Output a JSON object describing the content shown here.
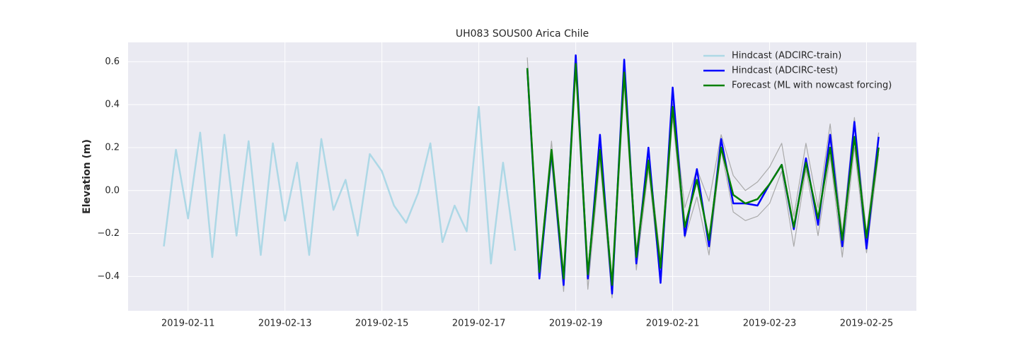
{
  "chart_data": {
    "type": "line",
    "title": "UH083 SOUS00 Arica Chile",
    "ylabel": "Elevation (m)",
    "xlim": [
      "2019-02-09T18:18",
      "2019-02-26T00:42"
    ],
    "xticks": [
      "2019-02-11",
      "2019-02-13",
      "2019-02-15",
      "2019-02-17",
      "2019-02-19",
      "2019-02-21",
      "2019-02-23",
      "2019-02-25"
    ],
    "ylim": [
      -0.56,
      0.69
    ],
    "yticks": [
      {
        "value": -0.4,
        "label": "−0.4"
      },
      {
        "value": -0.2,
        "label": "−0.2"
      },
      {
        "value": 0,
        "label": "0.0"
      },
      0.2,
      0.4,
      0.6
    ],
    "grid": true,
    "legend": "upper right",
    "series": [
      {
        "name": "Hindcast (ADCIRC-train)",
        "color": "#add8e6",
        "width": 2.5,
        "x": [
          "2019-02-10T12:00",
          "2019-02-10T18:00",
          "2019-02-11T00:00",
          "2019-02-11T06:00",
          "2019-02-11T12:00",
          "2019-02-11T18:00",
          "2019-02-12T00:00",
          "2019-02-12T06:00",
          "2019-02-12T12:00",
          "2019-02-12T18:00",
          "2019-02-13T00:00",
          "2019-02-13T06:00",
          "2019-02-13T12:00",
          "2019-02-13T18:00",
          "2019-02-14T00:00",
          "2019-02-14T06:00",
          "2019-02-14T12:00",
          "2019-02-14T18:00",
          "2019-02-15T00:00",
          "2019-02-15T06:00",
          "2019-02-15T12:00",
          "2019-02-15T18:00",
          "2019-02-16T00:00",
          "2019-02-16T06:00",
          "2019-02-16T12:00",
          "2019-02-16T18:00",
          "2019-02-17T00:00",
          "2019-02-17T06:00",
          "2019-02-17T12:00",
          "2019-02-17T18:00"
        ],
        "values": [
          -0.26,
          0.19,
          -0.13,
          0.27,
          -0.31,
          0.26,
          -0.21,
          0.23,
          -0.3,
          0.22,
          -0.14,
          0.13,
          -0.3,
          0.24,
          -0.09,
          0.05,
          -0.21,
          0.17,
          0.09,
          -0.07,
          -0.15,
          -0.01,
          0.22,
          -0.24,
          -0.07,
          -0.19,
          0.39,
          -0.34,
          0.13,
          -0.28
        ]
      },
      {
        "name": "Hindcast (ADCIRC-test)",
        "color": "#0000ff",
        "width": 2.5,
        "x": [
          "2019-02-18T00:00",
          "2019-02-18T06:00",
          "2019-02-18T12:00",
          "2019-02-18T18:00",
          "2019-02-19T00:00",
          "2019-02-19T06:00",
          "2019-02-19T12:00",
          "2019-02-19T18:00",
          "2019-02-20T00:00",
          "2019-02-20T06:00",
          "2019-02-20T12:00",
          "2019-02-20T18:00",
          "2019-02-21T00:00",
          "2019-02-21T06:00",
          "2019-02-21T12:00",
          "2019-02-21T18:00",
          "2019-02-22T00:00",
          "2019-02-22T06:00",
          "2019-02-22T12:00",
          "2019-02-22T18:00",
          "2019-02-23T00:00",
          "2019-02-23T06:00",
          "2019-02-23T12:00",
          "2019-02-23T18:00",
          "2019-02-24T00:00",
          "2019-02-24T06:00",
          "2019-02-24T12:00",
          "2019-02-24T18:00",
          "2019-02-25T00:00",
          "2019-02-25T06:00"
        ],
        "values": [
          0.57,
          -0.41,
          0.18,
          -0.44,
          0.63,
          -0.41,
          0.26,
          -0.48,
          0.61,
          -0.34,
          0.2,
          -0.43,
          0.48,
          -0.21,
          0.1,
          -0.26,
          0.24,
          -0.06,
          -0.06,
          -0.07,
          0.03,
          0.12,
          -0.18,
          0.15,
          -0.16,
          0.26,
          -0.26,
          0.32,
          -0.27,
          0.25
        ]
      },
      {
        "name": "Forecast (ML with nowcast forcing)",
        "color": "#008000",
        "width": 2.5,
        "x": [
          "2019-02-18T00:00",
          "2019-02-18T06:00",
          "2019-02-18T12:00",
          "2019-02-18T18:00",
          "2019-02-19T00:00",
          "2019-02-19T06:00",
          "2019-02-19T12:00",
          "2019-02-19T18:00",
          "2019-02-20T00:00",
          "2019-02-20T06:00",
          "2019-02-20T12:00",
          "2019-02-20T18:00",
          "2019-02-21T00:00",
          "2019-02-21T06:00",
          "2019-02-21T12:00",
          "2019-02-21T18:00",
          "2019-02-22T00:00",
          "2019-02-22T06:00",
          "2019-02-22T12:00",
          "2019-02-22T18:00",
          "2019-02-23T00:00",
          "2019-02-23T06:00",
          "2019-02-23T12:00",
          "2019-02-23T18:00",
          "2019-02-24T00:00",
          "2019-02-24T06:00",
          "2019-02-24T12:00",
          "2019-02-24T18:00",
          "2019-02-25T00:00",
          "2019-02-25T06:00"
        ],
        "values": [
          0.57,
          -0.38,
          0.19,
          -0.41,
          0.59,
          -0.39,
          0.19,
          -0.44,
          0.55,
          -0.31,
          0.14,
          -0.36,
          0.39,
          -0.17,
          0.05,
          -0.23,
          0.2,
          -0.02,
          -0.06,
          -0.04,
          0.03,
          0.12,
          -0.17,
          0.13,
          -0.13,
          0.2,
          -0.23,
          0.25,
          -0.22,
          0.2
        ]
      },
      {
        "color": "#aaaaaa",
        "width": 1.2,
        "x": [
          "2019-02-18T00:00",
          "2019-02-18T06:00",
          "2019-02-18T12:00",
          "2019-02-18T18:00",
          "2019-02-19T00:00",
          "2019-02-19T06:00",
          "2019-02-19T12:00",
          "2019-02-19T18:00",
          "2019-02-20T00:00",
          "2019-02-20T06:00",
          "2019-02-20T12:00",
          "2019-02-20T18:00",
          "2019-02-21T00:00",
          "2019-02-21T06:00",
          "2019-02-21T12:00",
          "2019-02-21T18:00",
          "2019-02-22T00:00",
          "2019-02-22T06:00",
          "2019-02-22T12:00",
          "2019-02-22T18:00",
          "2019-02-23T00:00",
          "2019-02-23T06:00",
          "2019-02-23T12:00",
          "2019-02-23T18:00",
          "2019-02-24T00:00",
          "2019-02-24T06:00",
          "2019-02-24T12:00",
          "2019-02-24T18:00",
          "2019-02-25T00:00",
          "2019-02-25T06:00"
        ],
        "values": [
          0.62,
          -0.37,
          0.23,
          -0.4,
          0.6,
          -0.37,
          0.21,
          -0.42,
          0.58,
          -0.28,
          0.17,
          -0.32,
          0.41,
          -0.08,
          0.1,
          -0.05,
          0.26,
          0.07,
          0.0,
          0.04,
          0.11,
          0.22,
          -0.12,
          0.22,
          -0.08,
          0.31,
          -0.2,
          0.34,
          -0.2,
          0.27
        ]
      },
      {
        "color": "#aaaaaa",
        "width": 1.2,
        "x": [
          "2019-02-18T00:00",
          "2019-02-18T06:00",
          "2019-02-18T12:00",
          "2019-02-18T18:00",
          "2019-02-19T00:00",
          "2019-02-19T06:00",
          "2019-02-19T12:00",
          "2019-02-19T18:00",
          "2019-02-20T00:00",
          "2019-02-20T06:00",
          "2019-02-20T12:00",
          "2019-02-20T18:00",
          "2019-02-21T00:00",
          "2019-02-21T06:00",
          "2019-02-21T12:00",
          "2019-02-21T18:00",
          "2019-02-22T00:00",
          "2019-02-22T06:00",
          "2019-02-22T12:00",
          "2019-02-22T18:00",
          "2019-02-23T00:00",
          "2019-02-23T06:00",
          "2019-02-23T12:00",
          "2019-02-23T18:00",
          "2019-02-24T00:00",
          "2019-02-24T06:00",
          "2019-02-24T12:00",
          "2019-02-24T18:00",
          "2019-02-25T00:00",
          "2019-02-25T06:00"
        ],
        "values": [
          0.55,
          -0.4,
          0.14,
          -0.47,
          0.55,
          -0.46,
          0.14,
          -0.5,
          0.5,
          -0.37,
          0.1,
          -0.42,
          0.34,
          -0.22,
          -0.03,
          -0.3,
          0.19,
          -0.1,
          -0.14,
          -0.12,
          -0.06,
          0.09,
          -0.26,
          0.1,
          -0.21,
          0.16,
          -0.31,
          0.2,
          -0.29,
          0.17
        ]
      }
    ]
  }
}
